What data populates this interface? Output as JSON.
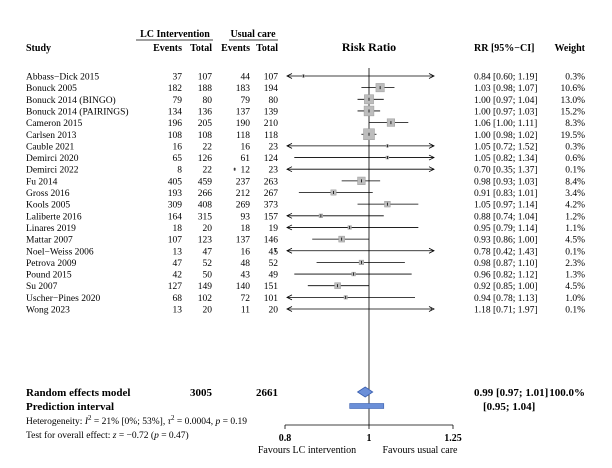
{
  "chart_data": {
    "type": "forest",
    "title": "Risk Ratio",
    "group_headers": {
      "intervention": "LC Intervention",
      "control": "Usual care"
    },
    "columns": {
      "study": "Study",
      "events_int": "Events",
      "total_int": "Total",
      "events_ctl": "Events",
      "total_ctl": "Total",
      "rr_ci": "RR [95%−CI]",
      "weight": "Weight"
    },
    "x_axis": {
      "scale": "log",
      "ticks": [
        0.8,
        1,
        1.25
      ],
      "tick_labels": [
        "0.8",
        "1",
        "1.25"
      ],
      "reference": 1,
      "xlim": [
        0.8,
        1.25
      ]
    },
    "favours_left": "Favours LC intervention",
    "favours_right": "Favours usual care",
    "studies": [
      {
        "name": "Abbass−Dick 2015",
        "ei": "37",
        "ni": "107",
        "ec": "44",
        "nc": "107",
        "rr": 0.84,
        "lo": 0.6,
        "hi": 1.19,
        "ci_text": "0.84 [0.60; 1.19]",
        "weight": "0.3%",
        "w": 0.3
      },
      {
        "name": "Bonuck 2005",
        "ei": "182",
        "ni": "188",
        "ec": "183",
        "nc": "194",
        "rr": 1.03,
        "lo": 0.98,
        "hi": 1.07,
        "ci_text": "1.03 [0.98; 1.07]",
        "weight": "10.6%",
        "w": 10.6
      },
      {
        "name": "Bonuck 2014 (BINGO)",
        "ei": "79",
        "ni": "80",
        "ec": "79",
        "nc": "80",
        "rr": 1.0,
        "lo": 0.97,
        "hi": 1.04,
        "ci_text": "1.00 [0.97; 1.04]",
        "weight": "13.0%",
        "w": 13.0
      },
      {
        "name": "Bonuck 2014 (PAIRINGS)",
        "ei": "134",
        "ni": "136",
        "ec": "137",
        "nc": "139",
        "rr": 1.0,
        "lo": 0.97,
        "hi": 1.03,
        "ci_text": "1.00 [0.97; 1.03]",
        "weight": "15.2%",
        "w": 15.2
      },
      {
        "name": "Cameron 2015",
        "ei": "196",
        "ni": "205",
        "ec": "190",
        "nc": "210",
        "rr": 1.06,
        "lo": 1.0,
        "hi": 1.11,
        "ci_text": "1.06 [1.00; 1.11]",
        "weight": "8.3%",
        "w": 8.3
      },
      {
        "name": "Carlsen 2013",
        "ei": "108",
        "ni": "108",
        "ec": "118",
        "nc": "118",
        "rr": 1.0,
        "lo": 0.98,
        "hi": 1.02,
        "ci_text": "1.00 [0.98; 1.02]",
        "weight": "19.5%",
        "w": 19.5
      },
      {
        "name": "Cauble 2021",
        "ei": "16",
        "ni": "22",
        "ec": "16",
        "nc": "23",
        "rr": 1.05,
        "lo": 0.72,
        "hi": 1.52,
        "ci_text": "1.05 [0.72; 1.52]",
        "weight": "0.3%",
        "w": 0.3
      },
      {
        "name": "Demirci 2020",
        "ei": "65",
        "ni": "126",
        "ec": "61",
        "nc": "124",
        "rr": 1.05,
        "lo": 0.82,
        "hi": 1.34,
        "ci_text": "1.05 [0.82; 1.34]",
        "weight": "0.6%",
        "w": 0.6
      },
      {
        "name": "Demirci 2022",
        "ei": "8",
        "ni": "22",
        "ec": "12",
        "nc": "23",
        "rr": 0.7,
        "lo": 0.35,
        "hi": 1.37,
        "ci_text": "0.70 [0.35; 1.37]",
        "weight": "0.1%",
        "w": 0.1
      },
      {
        "name": "Fu 2014",
        "ei": "405",
        "ni": "459",
        "ec": "237",
        "nc": "263",
        "rr": 0.98,
        "lo": 0.93,
        "hi": 1.03,
        "ci_text": "0.98 [0.93; 1.03]",
        "weight": "8.4%",
        "w": 8.4
      },
      {
        "name": "Gross 2016",
        "ei": "193",
        "ni": "266",
        "ec": "212",
        "nc": "267",
        "rr": 0.91,
        "lo": 0.83,
        "hi": 1.01,
        "ci_text": "0.91 [0.83; 1.01]",
        "weight": "3.4%",
        "w": 3.4
      },
      {
        "name": "Kools 2005",
        "ei": "309",
        "ni": "408",
        "ec": "269",
        "nc": "373",
        "rr": 1.05,
        "lo": 0.97,
        "hi": 1.14,
        "ci_text": "1.05 [0.97; 1.14]",
        "weight": "4.2%",
        "w": 4.2
      },
      {
        "name": "Laliberte 2016",
        "ei": "164",
        "ni": "315",
        "ec": "93",
        "nc": "157",
        "rr": 0.88,
        "lo": 0.74,
        "hi": 1.04,
        "ci_text": "0.88 [0.74; 1.04]",
        "weight": "1.2%",
        "w": 1.2
      },
      {
        "name": "Linares 2019",
        "ei": "18",
        "ni": "20",
        "ec": "18",
        "nc": "19",
        "rr": 0.95,
        "lo": 0.79,
        "hi": 1.14,
        "ci_text": "0.95 [0.79; 1.14]",
        "weight": "1.1%",
        "w": 1.1
      },
      {
        "name": "Mattar 2007",
        "ei": "107",
        "ni": "123",
        "ec": "137",
        "nc": "146",
        "rr": 0.93,
        "lo": 0.86,
        "hi": 1.0,
        "ci_text": "0.93 [0.86; 1.00]",
        "weight": "4.5%",
        "w": 4.5
      },
      {
        "name": "Noel−Weiss 2006",
        "ei": "13",
        "ni": "47",
        "ec": "16",
        "nc": "45",
        "rr": 0.78,
        "lo": 0.42,
        "hi": 1.43,
        "ci_text": "0.78 [0.42; 1.43]",
        "weight": "0.1%",
        "w": 0.1
      },
      {
        "name": "Petrova 2009",
        "ei": "47",
        "ni": "52",
        "ec": "48",
        "nc": "52",
        "rr": 0.98,
        "lo": 0.87,
        "hi": 1.1,
        "ci_text": "0.98 [0.87; 1.10]",
        "weight": "2.3%",
        "w": 2.3
      },
      {
        "name": "Pound 2015",
        "ei": "42",
        "ni": "50",
        "ec": "43",
        "nc": "49",
        "rr": 0.96,
        "lo": 0.82,
        "hi": 1.12,
        "ci_text": "0.96 [0.82; 1.12]",
        "weight": "1.3%",
        "w": 1.3
      },
      {
        "name": "Su 2007",
        "ei": "127",
        "ni": "149",
        "ec": "140",
        "nc": "151",
        "rr": 0.92,
        "lo": 0.85,
        "hi": 1.0,
        "ci_text": "0.92 [0.85; 1.00]",
        "weight": "4.5%",
        "w": 4.5
      },
      {
        "name": "Uscher−Pines 2020",
        "ei": "68",
        "ni": "102",
        "ec": "72",
        "nc": "101",
        "rr": 0.94,
        "lo": 0.78,
        "hi": 1.13,
        "ci_text": "0.94 [0.78; 1.13]",
        "weight": "1.0%",
        "w": 1.0
      },
      {
        "name": "Wong 2023",
        "ei": "13",
        "ni": "20",
        "ec": "11",
        "nc": "20",
        "rr": 1.18,
        "lo": 0.71,
        "hi": 1.97,
        "ci_text": "1.18 [0.71; 1.97]",
        "weight": "0.1%",
        "w": 0.1
      }
    ],
    "pooled": {
      "label": "Random effects model",
      "total_int": "3005",
      "total_ctl": "2661",
      "rr": 0.99,
      "lo": 0.97,
      "hi": 1.01,
      "ci_text": "0.99 [0.97; 1.01]",
      "weight": "100.0%",
      "diamond_color": "#6b8fd8"
    },
    "prediction": {
      "label": "Prediction interval",
      "lo": 0.95,
      "hi": 1.04,
      "ci_text": "[0.95; 1.04]",
      "color": "#6b8fd8"
    },
    "heterogeneity": {
      "prefix": "Heterogeneity: ",
      "i2_sym": "I",
      "i2_text": " = 21% [0%; 53%], ",
      "tau_sym": "τ",
      "tau_text": " = 0.0004, ",
      "p_sym": "p",
      "p_text": " = 0.19"
    },
    "overall_test": {
      "prefix": "Test for overall effect: ",
      "z_sym": "z",
      "z_text": " = −0.72 (",
      "p_sym": "p",
      "p_text": " = 0.47)"
    },
    "colors": {
      "box": "#bdbdbd",
      "box_stroke": "#9a9a9a",
      "line": "#000000"
    }
  }
}
